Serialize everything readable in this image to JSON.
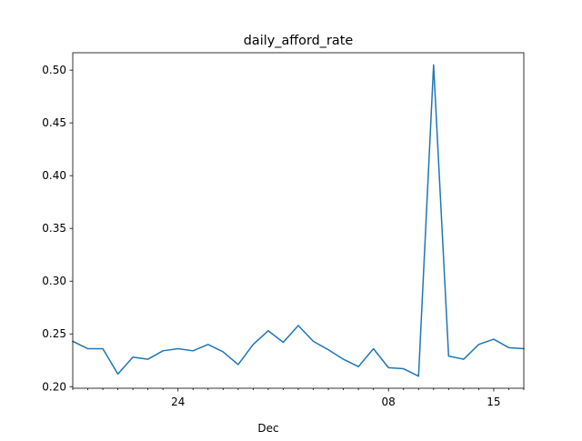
{
  "chart_data": {
    "type": "line",
    "title": "daily_afford_rate",
    "xlabel": "Dec",
    "ylabel": "",
    "x_axis": {
      "min": "2019-11-17",
      "max": "2019-12-17",
      "major_ticks": [
        {
          "date": "2019-11-24",
          "label": "24"
        },
        {
          "date": "2019-12-08",
          "label": "08"
        },
        {
          "date": "2019-12-15",
          "label": "15"
        }
      ],
      "minor_tick_dates": [
        "2019-11-17",
        "2019-11-18",
        "2019-11-19",
        "2019-11-20",
        "2019-11-21",
        "2019-11-22",
        "2019-11-23",
        "2019-11-25",
        "2019-11-26",
        "2019-11-27",
        "2019-11-28",
        "2019-11-29",
        "2019-11-30",
        "2019-12-01",
        "2019-12-02",
        "2019-12-03",
        "2019-12-04",
        "2019-12-05",
        "2019-12-06",
        "2019-12-07",
        "2019-12-09",
        "2019-12-10",
        "2019-12-11",
        "2019-12-12",
        "2019-12-13",
        "2019-12-14",
        "2019-12-16",
        "2019-12-17"
      ]
    },
    "ylim": [
      0.1985,
      0.5165
    ],
    "y_ticks": [
      {
        "value": 0.2,
        "label": "0.20"
      },
      {
        "value": 0.25,
        "label": "0.25"
      },
      {
        "value": 0.3,
        "label": "0.30"
      },
      {
        "value": 0.35,
        "label": "0.35"
      },
      {
        "value": 0.4,
        "label": "0.40"
      },
      {
        "value": 0.45,
        "label": "0.45"
      },
      {
        "value": 0.5,
        "label": "0.50"
      }
    ],
    "grid": false,
    "legend": "none",
    "series": [
      {
        "color": "#1f77b4",
        "x": [
          "2019-11-17",
          "2019-11-18",
          "2019-11-19",
          "2019-11-20",
          "2019-11-21",
          "2019-11-22",
          "2019-11-23",
          "2019-11-24",
          "2019-11-25",
          "2019-11-26",
          "2019-11-27",
          "2019-11-28",
          "2019-11-29",
          "2019-11-30",
          "2019-12-01",
          "2019-12-02",
          "2019-12-03",
          "2019-12-04",
          "2019-12-05",
          "2019-12-06",
          "2019-12-07",
          "2019-12-08",
          "2019-12-09",
          "2019-12-10",
          "2019-12-11",
          "2019-12-12",
          "2019-12-13",
          "2019-12-14",
          "2019-12-15",
          "2019-12-16",
          "2019-12-17"
        ],
        "values": [
          0.243,
          0.236,
          0.236,
          0.212,
          0.228,
          0.226,
          0.234,
          0.236,
          0.234,
          0.24,
          0.233,
          0.221,
          0.24,
          0.253,
          0.242,
          0.258,
          0.243,
          0.235,
          0.226,
          0.219,
          0.236,
          0.218,
          0.217,
          0.21,
          0.505,
          0.229,
          0.226,
          0.24,
          0.245,
          0.237,
          0.236
        ]
      }
    ]
  }
}
